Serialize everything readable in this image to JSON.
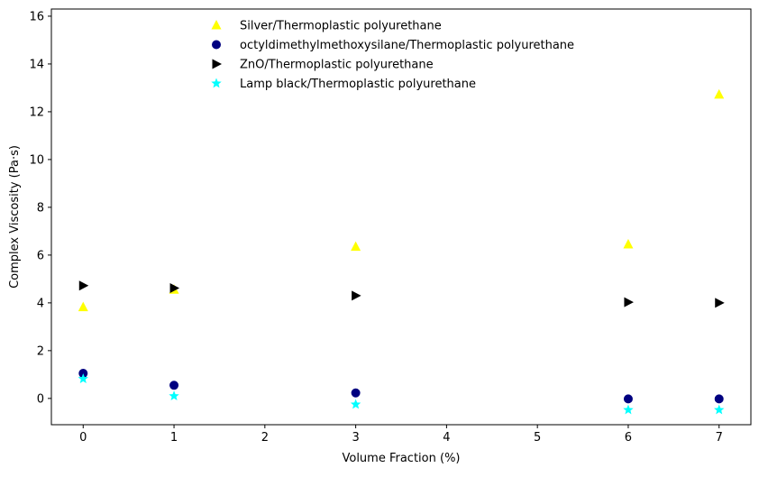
{
  "chart_data": {
    "type": "scatter",
    "title": "",
    "xlabel": "Volume Fraction (%)",
    "ylabel": "Complex Viscosity (Pa·s)",
    "xlim": [
      -0.35,
      7.35
    ],
    "ylim": [
      -1.1,
      16.3
    ],
    "xticks": [
      0,
      1,
      2,
      3,
      4,
      5,
      6,
      7
    ],
    "yticks": [
      0,
      2,
      4,
      6,
      8,
      10,
      12,
      14,
      16
    ],
    "grid": false,
    "legend_position": "top-center",
    "series": [
      {
        "name": "Silver/Thermoplastic polyurethane",
        "marker": "triangle-up",
        "color": "#ffff00",
        "x": [
          0,
          1,
          3,
          6,
          7
        ],
        "y": [
          3.82,
          4.55,
          6.35,
          6.45,
          12.72
        ]
      },
      {
        "name": "octyldimethylmethoxysilane/Thermoplastic polyurethane",
        "marker": "circle",
        "color": "#000080",
        "x": [
          0,
          1,
          3,
          6,
          7
        ],
        "y": [
          1.05,
          0.55,
          0.23,
          -0.02,
          -0.02
        ]
      },
      {
        "name": "ZnO/Thermoplastic polyurethane",
        "marker": "triangle-right",
        "color": "#000000",
        "x": [
          0,
          1,
          3,
          6,
          7
        ],
        "y": [
          4.72,
          4.62,
          4.3,
          4.03,
          4.0
        ]
      },
      {
        "name": "Lamp black/Thermoplastic polyurethane",
        "marker": "star",
        "color": "#00ffff",
        "x": [
          0,
          1,
          3,
          6,
          7
        ],
        "y": [
          0.82,
          0.1,
          -0.25,
          -0.48,
          -0.48
        ]
      }
    ]
  }
}
